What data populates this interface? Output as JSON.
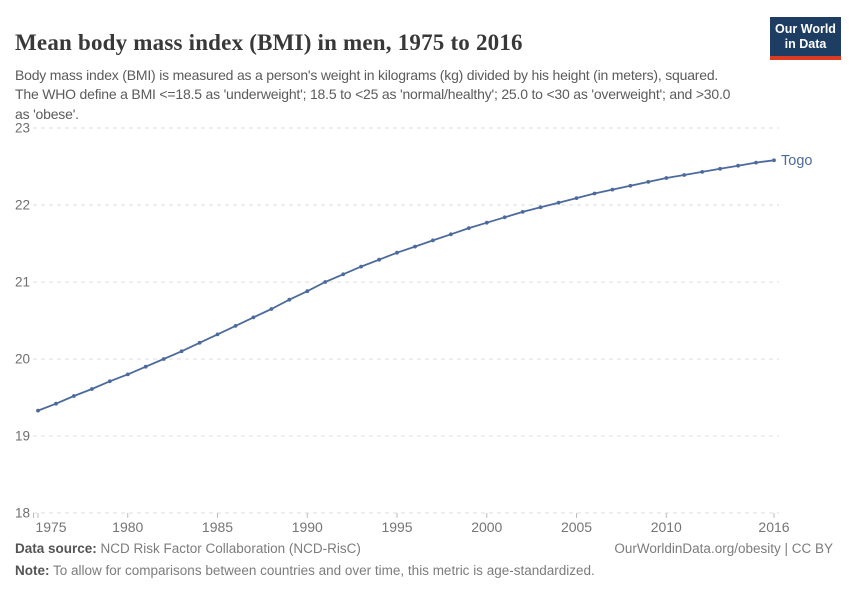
{
  "header": {
    "title": "Mean body mass index (BMI) in men, 1975 to 2016",
    "subtitle": "Body mass index (BMI) is measured as a person's weight in kilograms (kg) divided by his height (in meters), squared. The WHO define a BMI <=18.5 as 'underweight'; 18.5 to <25 as 'normal/healthy'; 25.0 to <30 as 'overweight'; and >30.0 as 'obese'.",
    "logo": {
      "line1": "Our World",
      "line2": "in Data",
      "bg_color": "#1d3d63",
      "bar_color": "#dc3a22"
    }
  },
  "chart_data": {
    "type": "line",
    "title": "Mean body mass index (BMI) in men, 1975 to 2016",
    "xlabel": "",
    "ylabel": "",
    "xlim": [
      1975,
      2016
    ],
    "ylim": [
      18,
      23
    ],
    "x_ticks": [
      1975,
      1980,
      1985,
      1990,
      1995,
      2000,
      2005,
      2010,
      2016
    ],
    "y_ticks": [
      18,
      19,
      20,
      21,
      22,
      23
    ],
    "grid": "horizontal-dashed",
    "grid_color": "#dedede",
    "axis_label_color": "#6f6f6f",
    "legend_position": "end-of-line",
    "series": [
      {
        "name": "Togo",
        "color": "#4c6a9c",
        "x": [
          1975,
          1976,
          1977,
          1978,
          1979,
          1980,
          1981,
          1982,
          1983,
          1984,
          1985,
          1986,
          1987,
          1988,
          1989,
          1990,
          1991,
          1992,
          1993,
          1994,
          1995,
          1996,
          1997,
          1998,
          1999,
          2000,
          2001,
          2002,
          2003,
          2004,
          2005,
          2006,
          2007,
          2008,
          2009,
          2010,
          2011,
          2012,
          2013,
          2014,
          2015,
          2016
        ],
        "values": [
          19.33,
          19.42,
          19.52,
          19.61,
          19.71,
          19.8,
          19.9,
          20.0,
          20.1,
          20.21,
          20.32,
          20.43,
          20.54,
          20.65,
          20.77,
          20.88,
          21.0,
          21.1,
          21.2,
          21.29,
          21.38,
          21.46,
          21.54,
          21.62,
          21.7,
          21.77,
          21.84,
          21.91,
          21.97,
          22.03,
          22.09,
          22.15,
          22.2,
          22.25,
          22.3,
          22.35,
          22.39,
          22.43,
          22.47,
          22.51,
          22.55,
          22.58
        ]
      }
    ]
  },
  "footer": {
    "datasource_label": "Data source:",
    "datasource_value": " NCD Risk Factor Collaboration (NCD-RisC)",
    "credit": "OurWorldinData.org/obesity | CC BY",
    "note_label": "Note:",
    "note_value": " To allow for comparisons between countries and over time, this metric is age-standardized."
  }
}
